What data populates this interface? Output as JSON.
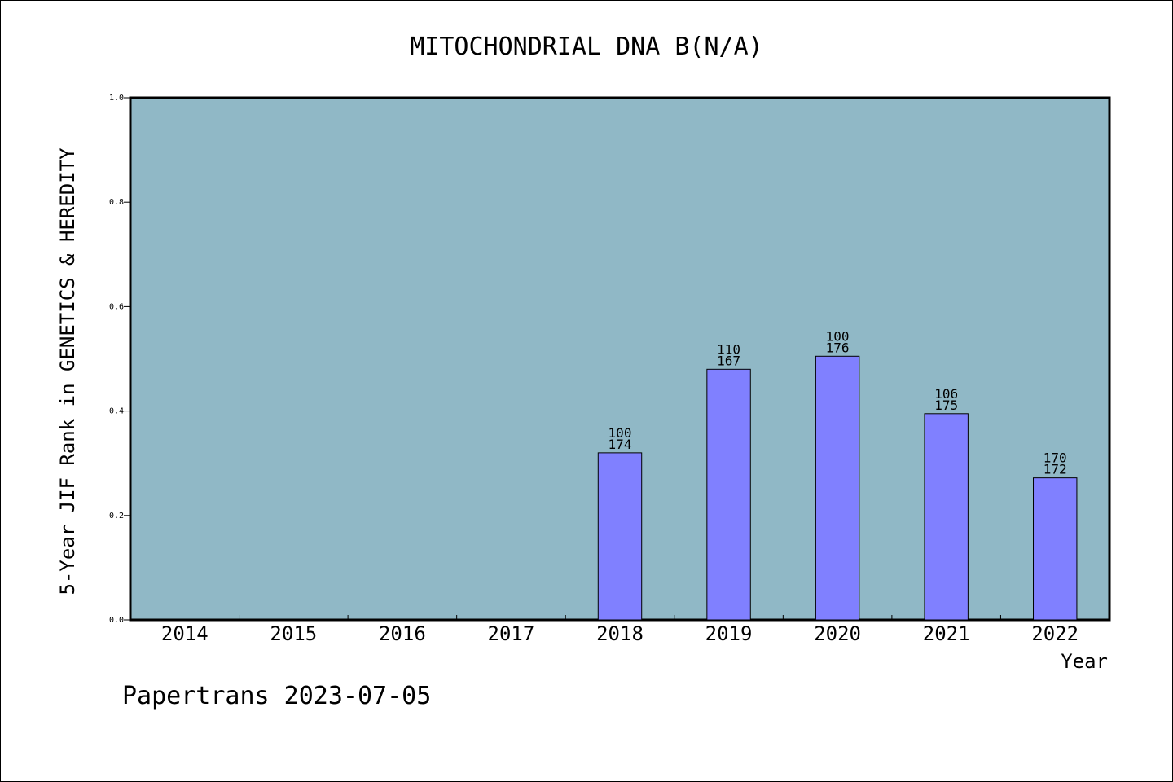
{
  "chart_data": {
    "type": "bar",
    "title": "MITOCHONDRIAL DNA B(N/A)",
    "xlabel": "Year",
    "ylabel": "5-Year JIF Rank in GENETICS & HEREDITY",
    "ylim": [
      0,
      1.0
    ],
    "yticks": [
      "0.0",
      "0.2",
      "0.4",
      "0.6",
      "0.8",
      "1.0"
    ],
    "categories": [
      "2014",
      "2015",
      "2016",
      "2017",
      "2018",
      "2019",
      "2020",
      "2021",
      "2022"
    ],
    "values": [
      null,
      null,
      null,
      null,
      0.32,
      0.48,
      0.505,
      0.395,
      0.272
    ],
    "labels_top": [
      "",
      "",
      "",
      "",
      "100",
      "110",
      "100",
      "106",
      "170"
    ],
    "labels_bottom": [
      "",
      "",
      "",
      "",
      "174",
      "167",
      "176",
      "175",
      "172"
    ],
    "grid": false,
    "colors": {
      "plot_background": "#90b8c6",
      "bar_fill": "#8080ff",
      "bar_stroke": "#000000"
    }
  },
  "footer": "Papertrans 2023-07-05"
}
